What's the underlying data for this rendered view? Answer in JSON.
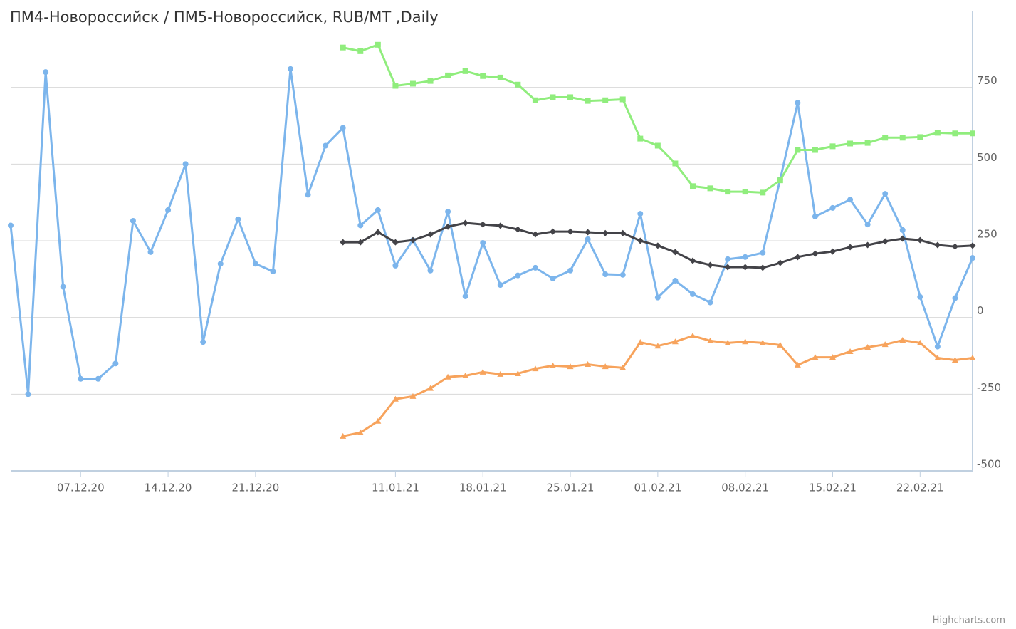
{
  "chart_data": {
    "type": "line",
    "title": "ПМ4-Новороссийск / ПМ5-Новороссийск, RUB/MT ,Daily",
    "credits": "Highcharts.com",
    "categories": [
      null,
      null,
      null,
      null,
      "07.12.20",
      null,
      null,
      null,
      null,
      "14.12.20",
      null,
      null,
      null,
      null,
      "21.12.20",
      null,
      null,
      null,
      null,
      null,
      null,
      null,
      "11.01.21",
      null,
      null,
      null,
      null,
      "18.01.21",
      null,
      null,
      null,
      null,
      "25.01.21",
      null,
      null,
      null,
      null,
      "01.02.21",
      null,
      null,
      null,
      null,
      "08.02.21",
      null,
      null,
      null,
      null,
      "15.02.21",
      null,
      null,
      null,
      null,
      "22.02.21",
      null,
      null,
      null
    ],
    "ylim": [
      -500,
      1000
    ],
    "yticks": [
      -500,
      -250,
      0,
      250,
      500,
      750
    ],
    "grid": true,
    "series": [
      {
        "color": "#7cb5ec",
        "marker": "circle",
        "values": [
          300,
          -250,
          800,
          100,
          -200,
          -200,
          -150,
          315,
          213,
          350,
          500,
          -80,
          175,
          320,
          175,
          150,
          810,
          400,
          560,
          618,
          300,
          350,
          169,
          252,
          153,
          345,
          69,
          243,
          106,
          137,
          162,
          127,
          153,
          255,
          141,
          139,
          338,
          65,
          120,
          76,
          49,
          190,
          197,
          211,
          450,
          700,
          329,
          357,
          384,
          303,
          403,
          285,
          67,
          -95,
          63,
          194
        ]
      },
      {
        "color": "#90ed7d",
        "marker": "square",
        "values": [
          null,
          null,
          null,
          null,
          null,
          null,
          null,
          null,
          null,
          null,
          null,
          null,
          null,
          null,
          null,
          null,
          null,
          null,
          null,
          880,
          868,
          889,
          755,
          762,
          771,
          789,
          803,
          787,
          782,
          759,
          708,
          718,
          718,
          706,
          708,
          711,
          583,
          560,
          502,
          428,
          421,
          410,
          410,
          407,
          447,
          546,
          546,
          558,
          567,
          569,
          586,
          586,
          588,
          602,
          600,
          600
        ]
      },
      {
        "color": "#434348",
        "marker": "diamond",
        "values": [
          null,
          null,
          null,
          null,
          null,
          null,
          null,
          null,
          null,
          null,
          null,
          null,
          null,
          null,
          null,
          null,
          null,
          null,
          null,
          245,
          245,
          278,
          245,
          252,
          271,
          296,
          308,
          303,
          299,
          287,
          271,
          280,
          280,
          278,
          275,
          275,
          250,
          234,
          213,
          185,
          171,
          164,
          164,
          162,
          178,
          197,
          208,
          215,
          229,
          236,
          248,
          257,
          252,
          236,
          231,
          234
        ]
      },
      {
        "color": "#f7a35c",
        "marker": "triangle",
        "values": [
          null,
          null,
          null,
          null,
          null,
          null,
          null,
          null,
          null,
          null,
          null,
          null,
          null,
          null,
          null,
          null,
          null,
          null,
          null,
          -387,
          -375,
          -338,
          -266,
          -257,
          -231,
          -194,
          -190,
          -178,
          -185,
          -183,
          -167,
          -157,
          -160,
          -153,
          -160,
          -164,
          -81,
          -93,
          -79,
          -60,
          -76,
          -83,
          -79,
          -83,
          -90,
          -155,
          -130,
          -130,
          -111,
          -97,
          -88,
          -74,
          -83,
          -132,
          -139,
          -132
        ]
      }
    ]
  }
}
